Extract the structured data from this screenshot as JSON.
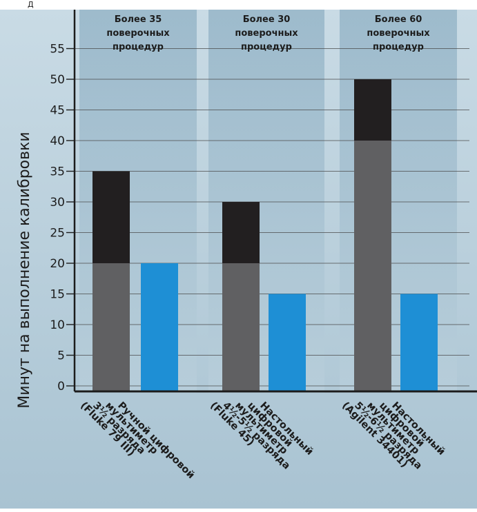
{
  "page_header_fragment": "Д",
  "chart_data": {
    "type": "bar",
    "stacked": true,
    "ylabel": "Минут на выполнение калибровки",
    "ylim": [
      0,
      60
    ],
    "yticks": [
      0,
      5,
      10,
      15,
      20,
      25,
      30,
      35,
      40,
      45,
      50,
      55
    ],
    "grid": true,
    "colors": {
      "base": "#606062",
      "top": "#221f20",
      "manual": "#1e8fd5",
      "band": "#b4cad6",
      "band_inner": "#a2bccc",
      "background": "#bfd4df"
    },
    "groups": [
      {
        "header": [
          "Более 35",
          "поверочных",
          "процедур"
        ],
        "bars": [
          {
            "label": [
              "(Fluke 79 III)",
              "3½ разряда",
              "мультиметр",
              "Ручной цифровой"
            ],
            "segments": [
              {
                "value": 20,
                "color_key": "base"
              },
              {
                "value": 15,
                "color_key": "top"
              }
            ],
            "total": 35
          },
          {
            "label": [],
            "segments": [
              {
                "value": 20,
                "color_key": "manual"
              }
            ],
            "total": 20
          }
        ]
      },
      {
        "header": [
          "Более 30",
          "поверочных",
          "процедур"
        ],
        "bars": [
          {
            "label": [
              "(Fluke 45)",
              "4½-5½ разряда",
              "мультиметр",
              "цифровой",
              "Настольный"
            ],
            "segments": [
              {
                "value": 20,
                "color_key": "base"
              },
              {
                "value": 10,
                "color_key": "top"
              }
            ],
            "total": 30
          },
          {
            "label": [],
            "segments": [
              {
                "value": 15,
                "color_key": "manual"
              }
            ],
            "total": 15
          }
        ]
      },
      {
        "header": [
          "Более 60",
          "поверочных",
          "процедур"
        ],
        "bars": [
          {
            "label": [
              "(Agilent 34401)",
              "5½-6½ разряда",
              "мультиметр",
              "цифровой",
              "Настольный"
            ],
            "segments": [
              {
                "value": 40,
                "color_key": "base"
              },
              {
                "value": 10,
                "color_key": "top"
              }
            ],
            "total": 50
          },
          {
            "label": [],
            "segments": [
              {
                "value": 15,
                "color_key": "manual"
              }
            ],
            "total": 15
          }
        ]
      }
    ]
  }
}
